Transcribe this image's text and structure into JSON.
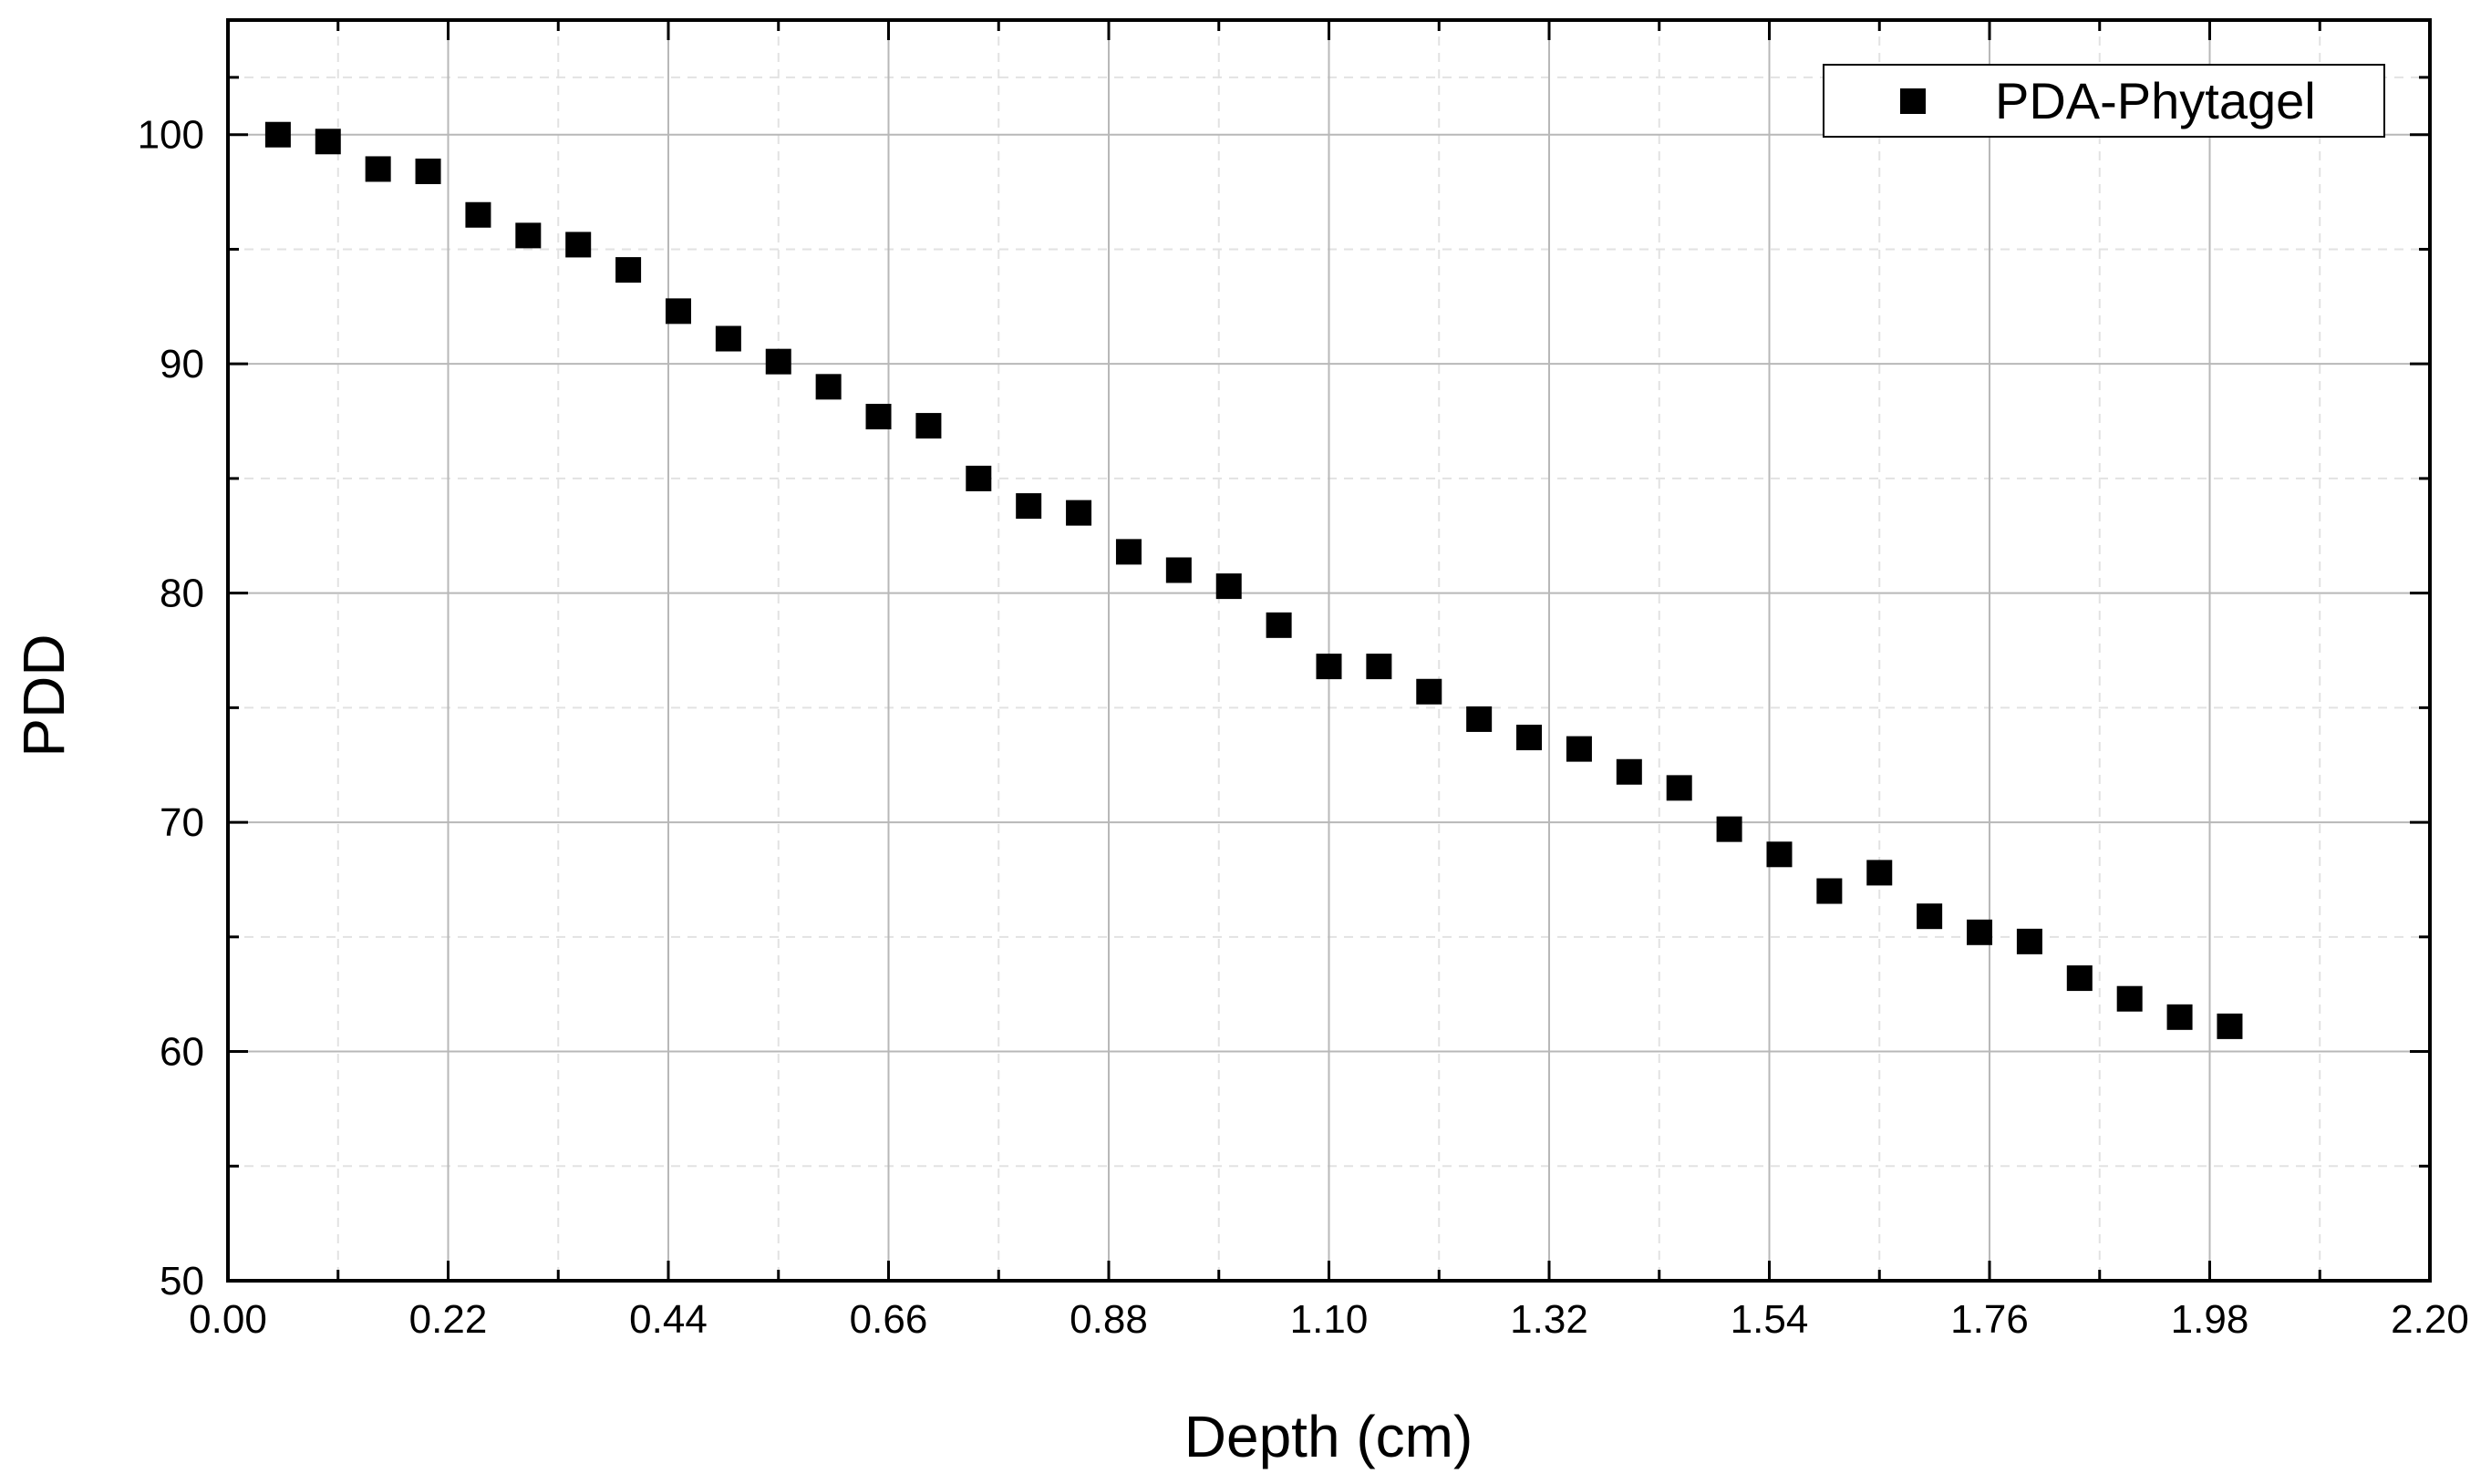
{
  "chart_data": {
    "type": "scatter",
    "title": "",
    "xlabel": "Depth (cm)",
    "ylabel": "PDD",
    "xlim": [
      0,
      2.2
    ],
    "ylim": [
      50,
      105
    ],
    "x_ticks": [
      "0.00",
      "0.22",
      "0.44",
      "0.66",
      "0.88",
      "1.10",
      "1.32",
      "1.54",
      "1.76",
      "1.98",
      "2.20"
    ],
    "y_ticks": [
      "50",
      "60",
      "70",
      "80",
      "90",
      "100"
    ],
    "grid": true,
    "legend_position": "top-right",
    "marker": "square",
    "marker_color": "#000000",
    "series": [
      {
        "name": "PDA-Phytagel",
        "x": [
          0.05,
          0.1,
          0.15,
          0.2,
          0.25,
          0.3,
          0.35,
          0.4,
          0.45,
          0.5,
          0.55,
          0.6,
          0.65,
          0.7,
          0.75,
          0.8,
          0.85,
          0.9,
          0.95,
          1.0,
          1.05,
          1.1,
          1.15,
          1.2,
          1.25,
          1.3,
          1.35,
          1.4,
          1.45,
          1.5,
          1.55,
          1.6,
          1.65,
          1.7,
          1.75,
          1.8,
          1.85,
          1.9,
          1.95,
          2.0
        ],
        "y": [
          100.0,
          99.7,
          98.5,
          98.4,
          96.5,
          95.6,
          95.2,
          94.1,
          92.3,
          91.1,
          90.1,
          89.0,
          87.7,
          87.3,
          85.0,
          83.8,
          83.5,
          81.8,
          81.0,
          80.3,
          78.6,
          76.8,
          76.8,
          75.7,
          74.5,
          73.7,
          73.2,
          72.2,
          71.5,
          69.7,
          68.6,
          67.0,
          67.8,
          65.9,
          65.2,
          64.8,
          63.2,
          62.3,
          61.5,
          61.1
        ]
      }
    ]
  }
}
